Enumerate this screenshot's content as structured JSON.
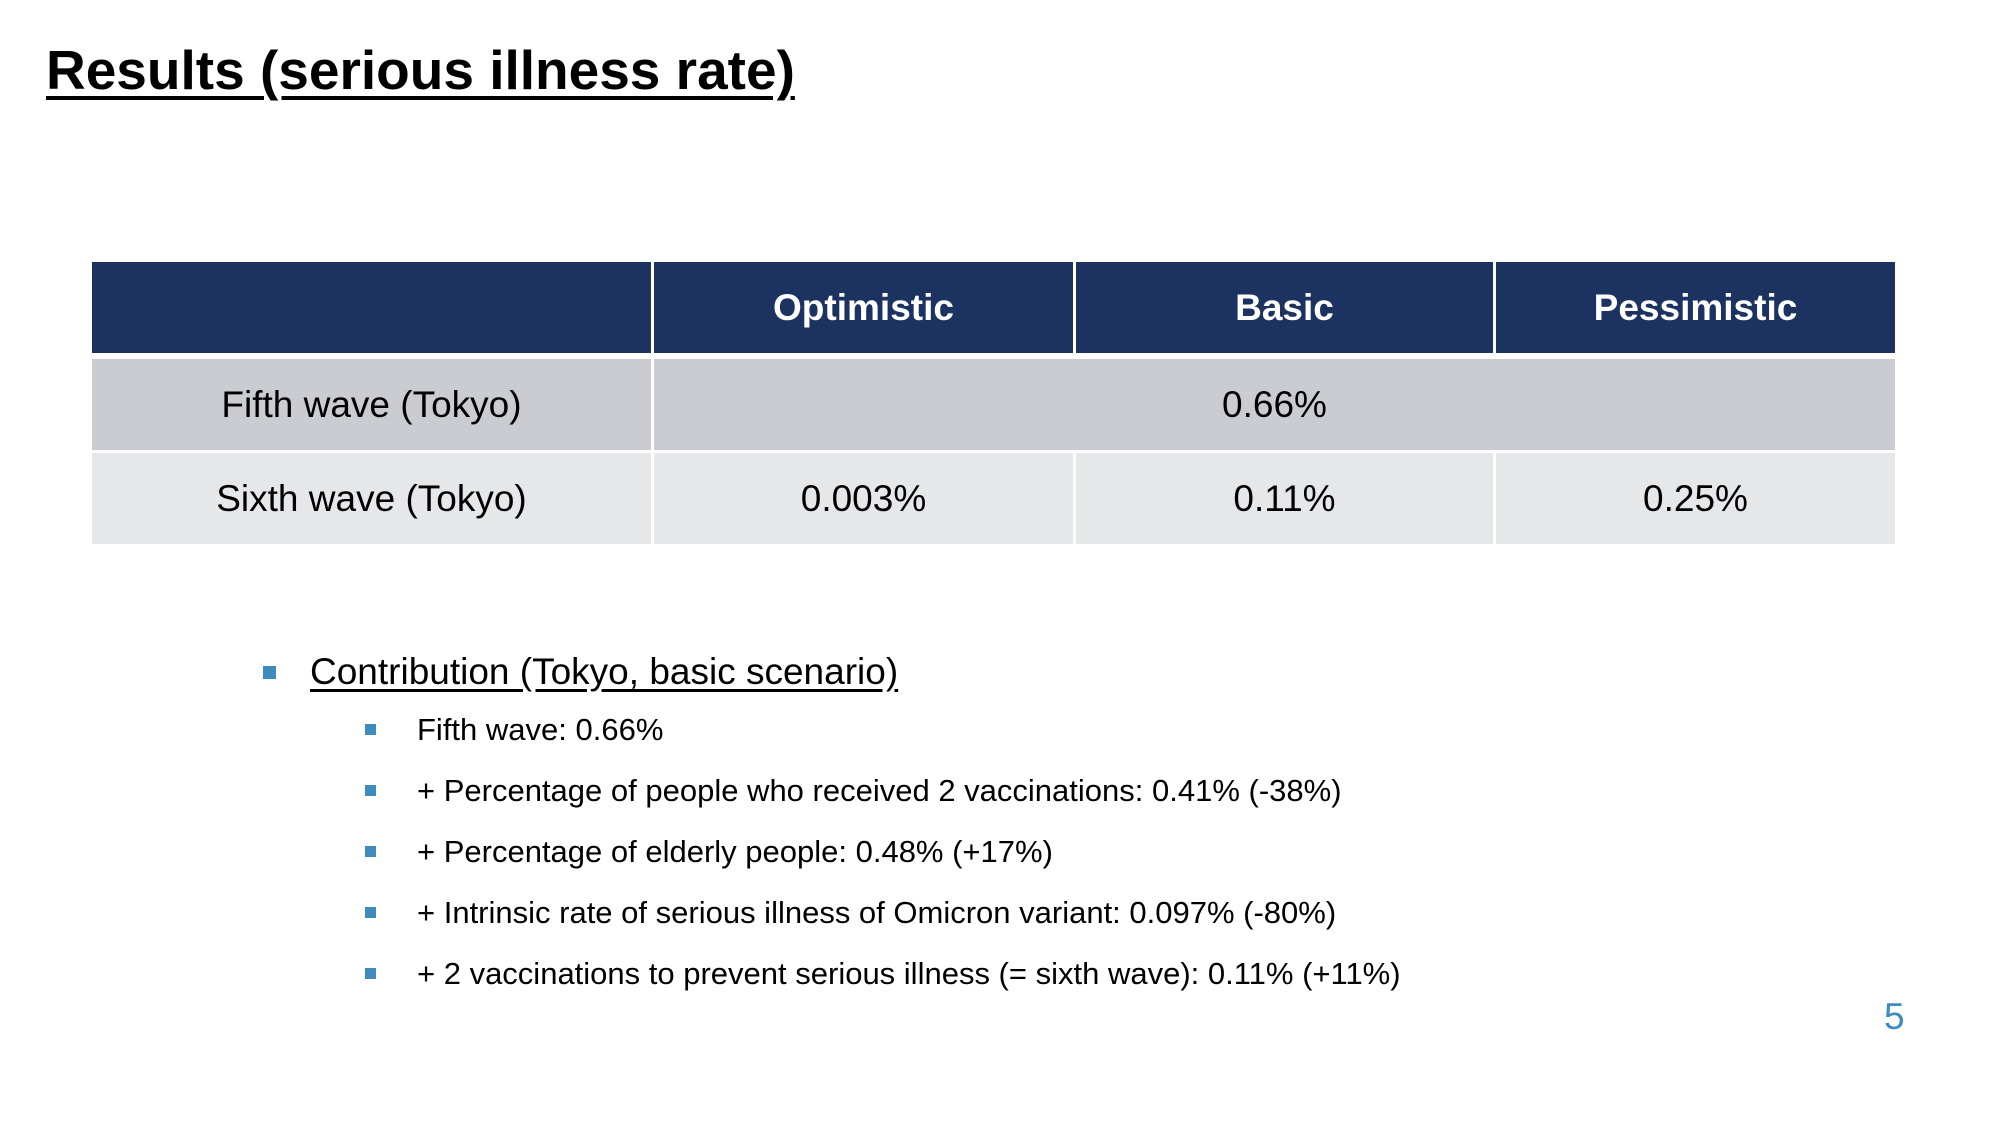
{
  "title": "Results (serious illness rate)",
  "table": {
    "headers": [
      "",
      "Optimistic",
      "Basic",
      "Pessimistic"
    ],
    "rows": [
      {
        "label": "Fifth wave (Tokyo)",
        "merged_value": "0.66%"
      },
      {
        "label": "Sixth wave (Tokyo)",
        "values": [
          "0.003%",
          "0.11%",
          "0.25%"
        ]
      }
    ]
  },
  "colors": {
    "header_bg": "#1c3260",
    "row1_bg": "#cbccd1",
    "row2_bg": "#e6e7e9",
    "accent": "#3f8bbd"
  },
  "contribution": {
    "heading": "Contribution (Tokyo, basic scenario)",
    "items": [
      "Fifth wave: 0.66%",
      "+ Percentage of people who received 2 vaccinations: 0.41% (-38%)",
      "+ Percentage of elderly people: 0.48% (+17%)",
      "+ Intrinsic rate of serious illness of Omicron variant: 0.097% (-80%)",
      "+ 2 vaccinations to prevent serious illness (= sixth wave): 0.11% (+11%)"
    ]
  },
  "page_number": "5"
}
